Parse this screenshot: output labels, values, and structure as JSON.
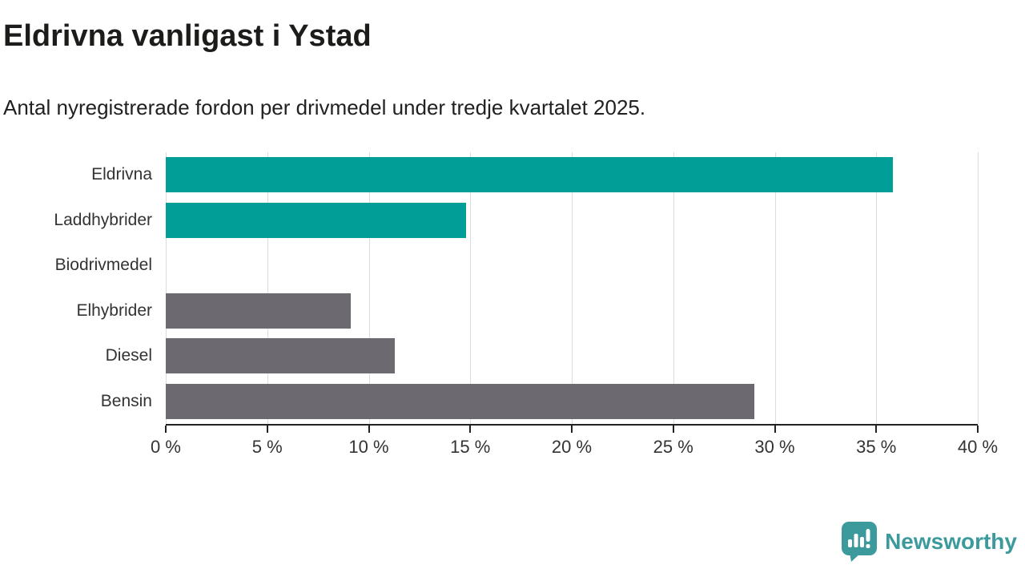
{
  "chart_data": {
    "type": "bar",
    "orientation": "horizontal",
    "title": "Eldrivna vanligast i Ystad",
    "subtitle": "Antal nyregistrerade fordon per drivmedel under tredje kvartalet 2025.",
    "categories": [
      "Eldrivna",
      "Laddhybrider",
      "Biodrivmedel",
      "Elhybrider",
      "Diesel",
      "Bensin"
    ],
    "values": [
      35.8,
      14.8,
      0,
      9.1,
      11.3,
      29.0
    ],
    "unit": "%",
    "bar_colors": [
      "#009E96",
      "#009E96",
      "#009E96",
      "#6C6A70",
      "#6C6A70",
      "#6C6A70"
    ],
    "highlight_color": "#009E96",
    "default_color": "#6C6A70",
    "xlim": [
      0,
      40
    ],
    "x_ticks": [
      0,
      5,
      10,
      15,
      20,
      25,
      30,
      35,
      40
    ],
    "x_tick_labels": [
      "0 %",
      "5 %",
      "10 %",
      "15 %",
      "20 %",
      "25 %",
      "30 %",
      "35 %",
      "40 %"
    ],
    "grid": "vertical",
    "grid_color": "#DCDCDC",
    "axis_color": "#222222",
    "legend": "none"
  },
  "footer": {
    "brand": "Newsworthy",
    "brand_color": "#3C9A9C"
  }
}
